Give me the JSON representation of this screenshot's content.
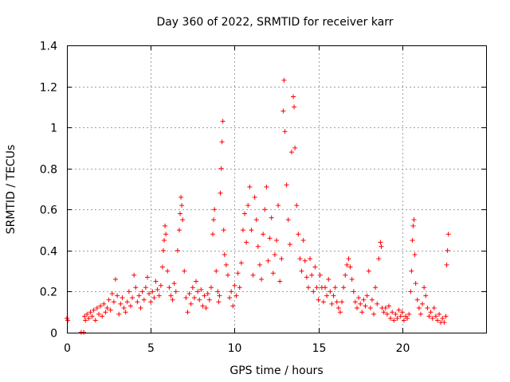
{
  "chart_data": {
    "type": "scatter",
    "title": "Day 360 of 2022, SRMTID for receiver karr",
    "xlabel": "GPS time / hours",
    "ylabel": "SRMTID / TECUs",
    "xlim": [
      0,
      25
    ],
    "ylim": [
      0,
      1.4
    ],
    "x_ticks": [
      0,
      5,
      10,
      15,
      20
    ],
    "x_tick_labels": [
      "0",
      "5",
      "10",
      "15",
      "20"
    ],
    "y_ticks": [
      0,
      0.2,
      0.4,
      0.6,
      0.8,
      1.0,
      1.2,
      1.4
    ],
    "y_tick_labels": [
      "0",
      "0.2",
      "0.4",
      "0.6",
      "0.8",
      "1",
      "1.2",
      "1.4"
    ],
    "grid": true,
    "marker": "+",
    "marker_color": "#ff0000",
    "series": [
      {
        "name": "SRMTID",
        "points": [
          [
            0.0,
            0.07
          ],
          [
            0.05,
            0.06
          ],
          [
            0.85,
            0.0
          ],
          [
            1.0,
            0.0
          ],
          [
            1.05,
            0.08
          ],
          [
            1.1,
            0.06
          ],
          [
            1.2,
            0.09
          ],
          [
            1.3,
            0.07
          ],
          [
            1.4,
            0.1
          ],
          [
            1.5,
            0.08
          ],
          [
            1.6,
            0.11
          ],
          [
            1.7,
            0.06
          ],
          [
            1.8,
            0.12
          ],
          [
            1.9,
            0.09
          ],
          [
            2.0,
            0.13
          ],
          [
            2.1,
            0.08
          ],
          [
            2.2,
            0.14
          ],
          [
            2.3,
            0.1
          ],
          [
            2.4,
            0.12
          ],
          [
            2.5,
            0.16
          ],
          [
            2.6,
            0.11
          ],
          [
            2.7,
            0.19
          ],
          [
            2.8,
            0.15
          ],
          [
            2.9,
            0.26
          ],
          [
            3.0,
            0.18
          ],
          [
            3.1,
            0.09
          ],
          [
            3.2,
            0.14
          ],
          [
            3.3,
            0.17
          ],
          [
            3.4,
            0.12
          ],
          [
            3.5,
            0.1
          ],
          [
            3.6,
            0.15
          ],
          [
            3.7,
            0.2
          ],
          [
            3.8,
            0.13
          ],
          [
            3.9,
            0.17
          ],
          [
            4.0,
            0.28
          ],
          [
            4.1,
            0.22
          ],
          [
            4.2,
            0.15
          ],
          [
            4.3,
            0.18
          ],
          [
            4.4,
            0.12
          ],
          [
            4.5,
            0.2
          ],
          [
            4.6,
            0.16
          ],
          [
            4.7,
            0.22
          ],
          [
            4.8,
            0.27
          ],
          [
            4.9,
            0.19
          ],
          [
            5.0,
            0.15
          ],
          [
            5.1,
            0.2
          ],
          [
            5.2,
            0.17
          ],
          [
            5.3,
            0.25
          ],
          [
            5.4,
            0.21
          ],
          [
            5.5,
            0.18
          ],
          [
            5.6,
            0.23
          ],
          [
            5.7,
            0.32
          ],
          [
            5.75,
            0.4
          ],
          [
            5.8,
            0.45
          ],
          [
            5.85,
            0.52
          ],
          [
            5.9,
            0.48
          ],
          [
            6.0,
            0.3
          ],
          [
            6.1,
            0.22
          ],
          [
            6.2,
            0.18
          ],
          [
            6.3,
            0.16
          ],
          [
            6.4,
            0.24
          ],
          [
            6.5,
            0.2
          ],
          [
            6.6,
            0.4
          ],
          [
            6.7,
            0.5
          ],
          [
            6.75,
            0.58
          ],
          [
            6.8,
            0.66
          ],
          [
            6.85,
            0.62
          ],
          [
            6.9,
            0.55
          ],
          [
            7.0,
            0.3
          ],
          [
            7.1,
            0.17
          ],
          [
            7.2,
            0.1
          ],
          [
            7.3,
            0.19
          ],
          [
            7.4,
            0.14
          ],
          [
            7.5,
            0.22
          ],
          [
            7.6,
            0.17
          ],
          [
            7.7,
            0.25
          ],
          [
            7.8,
            0.2
          ],
          [
            7.9,
            0.16
          ],
          [
            8.0,
            0.21
          ],
          [
            8.1,
            0.13
          ],
          [
            8.2,
            0.18
          ],
          [
            8.3,
            0.12
          ],
          [
            8.4,
            0.19
          ],
          [
            8.5,
            0.16
          ],
          [
            8.6,
            0.22
          ],
          [
            8.7,
            0.48
          ],
          [
            8.75,
            0.55
          ],
          [
            8.8,
            0.6
          ],
          [
            8.9,
            0.3
          ],
          [
            9.0,
            0.2
          ],
          [
            9.05,
            0.15
          ],
          [
            9.1,
            0.18
          ],
          [
            9.15,
            0.68
          ],
          [
            9.2,
            0.8
          ],
          [
            9.25,
            0.93
          ],
          [
            9.3,
            1.03
          ],
          [
            9.35,
            0.5
          ],
          [
            9.4,
            0.38
          ],
          [
            9.5,
            0.33
          ],
          [
            9.6,
            0.28
          ],
          [
            9.7,
            0.17
          ],
          [
            9.8,
            0.2
          ],
          [
            9.9,
            0.13
          ],
          [
            10.0,
            0.23
          ],
          [
            10.1,
            0.18
          ],
          [
            10.2,
            0.29
          ],
          [
            10.3,
            0.22
          ],
          [
            10.4,
            0.34
          ],
          [
            10.5,
            0.5
          ],
          [
            10.6,
            0.58
          ],
          [
            10.7,
            0.44
          ],
          [
            10.8,
            0.62
          ],
          [
            10.9,
            0.71
          ],
          [
            11.0,
            0.5
          ],
          [
            11.1,
            0.28
          ],
          [
            11.2,
            0.66
          ],
          [
            11.3,
            0.55
          ],
          [
            11.4,
            0.42
          ],
          [
            11.5,
            0.33
          ],
          [
            11.6,
            0.26
          ],
          [
            11.7,
            0.48
          ],
          [
            11.8,
            0.6
          ],
          [
            11.9,
            0.71
          ],
          [
            12.0,
            0.35
          ],
          [
            12.1,
            0.46
          ],
          [
            12.2,
            0.56
          ],
          [
            12.3,
            0.29
          ],
          [
            12.4,
            0.38
          ],
          [
            12.5,
            0.45
          ],
          [
            12.6,
            0.62
          ],
          [
            12.7,
            0.25
          ],
          [
            12.8,
            0.36
          ],
          [
            12.9,
            1.08
          ],
          [
            12.95,
            1.23
          ],
          [
            13.0,
            0.98
          ],
          [
            13.1,
            0.72
          ],
          [
            13.2,
            0.55
          ],
          [
            13.3,
            0.43
          ],
          [
            13.4,
            0.88
          ],
          [
            13.5,
            1.15
          ],
          [
            13.55,
            1.1
          ],
          [
            13.6,
            0.9
          ],
          [
            13.7,
            0.62
          ],
          [
            13.8,
            0.48
          ],
          [
            13.9,
            0.36
          ],
          [
            14.0,
            0.3
          ],
          [
            14.1,
            0.45
          ],
          [
            14.2,
            0.35
          ],
          [
            14.3,
            0.27
          ],
          [
            14.4,
            0.22
          ],
          [
            14.5,
            0.36
          ],
          [
            14.6,
            0.28
          ],
          [
            14.7,
            0.2
          ],
          [
            14.8,
            0.32
          ],
          [
            14.9,
            0.22
          ],
          [
            15.0,
            0.16
          ],
          [
            15.1,
            0.28
          ],
          [
            15.2,
            0.22
          ],
          [
            15.3,
            0.15
          ],
          [
            15.4,
            0.22
          ],
          [
            15.5,
            0.18
          ],
          [
            15.6,
            0.26
          ],
          [
            15.7,
            0.2
          ],
          [
            15.8,
            0.14
          ],
          [
            15.9,
            0.18
          ],
          [
            16.0,
            0.22
          ],
          [
            16.1,
            0.15
          ],
          [
            16.2,
            0.12
          ],
          [
            16.3,
            0.1
          ],
          [
            16.4,
            0.15
          ],
          [
            16.5,
            0.22
          ],
          [
            16.6,
            0.28
          ],
          [
            16.7,
            0.33
          ],
          [
            16.8,
            0.36
          ],
          [
            16.9,
            0.32
          ],
          [
            17.0,
            0.26
          ],
          [
            17.1,
            0.2
          ],
          [
            17.2,
            0.15
          ],
          [
            17.3,
            0.12
          ],
          [
            17.4,
            0.17
          ],
          [
            17.5,
            0.14
          ],
          [
            17.6,
            0.1
          ],
          [
            17.7,
            0.16
          ],
          [
            17.8,
            0.13
          ],
          [
            17.9,
            0.18
          ],
          [
            18.0,
            0.3
          ],
          [
            18.1,
            0.12
          ],
          [
            18.2,
            0.16
          ],
          [
            18.3,
            0.09
          ],
          [
            18.4,
            0.22
          ],
          [
            18.5,
            0.14
          ],
          [
            18.6,
            0.36
          ],
          [
            18.7,
            0.44
          ],
          [
            18.75,
            0.42
          ],
          [
            18.8,
            0.12
          ],
          [
            18.9,
            0.1
          ],
          [
            19.0,
            0.12
          ],
          [
            19.1,
            0.09
          ],
          [
            19.2,
            0.13
          ],
          [
            19.3,
            0.07
          ],
          [
            19.4,
            0.1
          ],
          [
            19.5,
            0.06
          ],
          [
            19.6,
            0.09
          ],
          [
            19.7,
            0.07
          ],
          [
            19.8,
            0.11
          ],
          [
            19.9,
            0.08
          ],
          [
            20.0,
            0.1
          ],
          [
            20.1,
            0.06
          ],
          [
            20.2,
            0.08
          ],
          [
            20.3,
            0.07
          ],
          [
            20.4,
            0.09
          ],
          [
            20.5,
            0.2
          ],
          [
            20.55,
            0.3
          ],
          [
            20.6,
            0.45
          ],
          [
            20.65,
            0.52
          ],
          [
            20.7,
            0.55
          ],
          [
            20.75,
            0.38
          ],
          [
            20.8,
            0.24
          ],
          [
            20.9,
            0.16
          ],
          [
            21.0,
            0.12
          ],
          [
            21.1,
            0.09
          ],
          [
            21.2,
            0.14
          ],
          [
            21.3,
            0.22
          ],
          [
            21.4,
            0.18
          ],
          [
            21.5,
            0.12
          ],
          [
            21.6,
            0.08
          ],
          [
            21.7,
            0.1
          ],
          [
            21.8,
            0.07
          ],
          [
            21.9,
            0.12
          ],
          [
            22.0,
            0.08
          ],
          [
            22.1,
            0.06
          ],
          [
            22.2,
            0.09
          ],
          [
            22.3,
            0.05
          ],
          [
            22.4,
            0.07
          ],
          [
            22.5,
            0.05
          ],
          [
            22.6,
            0.08
          ],
          [
            22.65,
            0.33
          ],
          [
            22.7,
            0.4
          ],
          [
            22.75,
            0.48
          ]
        ]
      }
    ]
  }
}
